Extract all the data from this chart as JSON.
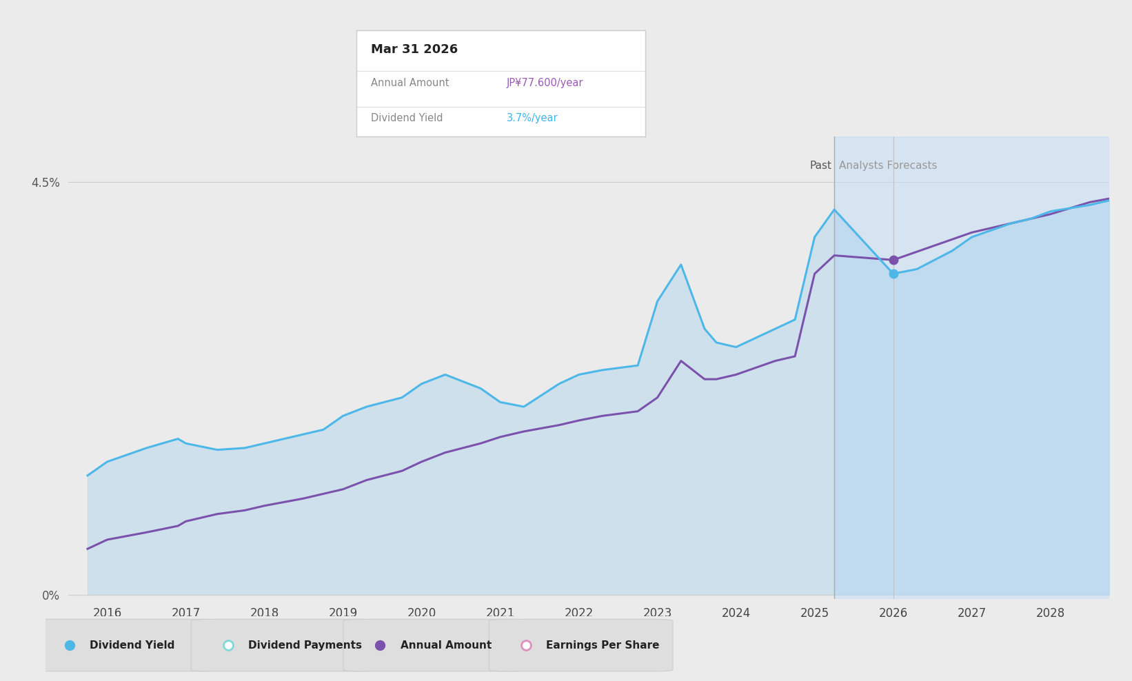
{
  "bg_color": "#ebebeb",
  "plot_bg_color": "#ebebeb",
  "x_min": 2015.5,
  "x_max": 2028.75,
  "y_min": -0.05,
  "y_max": 5.0,
  "blue_line": {
    "x": [
      2015.75,
      2016.0,
      2016.5,
      2016.9,
      2017.0,
      2017.4,
      2017.75,
      2018.0,
      2018.5,
      2018.75,
      2019.0,
      2019.3,
      2019.75,
      2020.0,
      2020.3,
      2020.75,
      2021.0,
      2021.3,
      2021.75,
      2022.0,
      2022.3,
      2022.75,
      2023.0,
      2023.3,
      2023.6,
      2023.75,
      2024.0,
      2024.5,
      2024.75,
      2025.0,
      2025.25,
      2026.0,
      2026.3,
      2026.75,
      2027.0,
      2027.5,
      2027.75,
      2028.0,
      2028.5,
      2028.75
    ],
    "y": [
      1.3,
      1.45,
      1.6,
      1.7,
      1.65,
      1.58,
      1.6,
      1.65,
      1.75,
      1.8,
      1.95,
      2.05,
      2.15,
      2.3,
      2.4,
      2.25,
      2.1,
      2.05,
      2.3,
      2.4,
      2.45,
      2.5,
      3.2,
      3.6,
      2.9,
      2.75,
      2.7,
      2.9,
      3.0,
      3.9,
      4.2,
      3.5,
      3.55,
      3.75,
      3.9,
      4.05,
      4.1,
      4.18,
      4.25,
      4.3
    ],
    "color": "#4db8e8",
    "lw": 2.2
  },
  "purple_line": {
    "x": [
      2015.75,
      2016.0,
      2016.5,
      2016.9,
      2017.0,
      2017.4,
      2017.75,
      2018.0,
      2018.5,
      2018.75,
      2019.0,
      2019.3,
      2019.75,
      2020.0,
      2020.3,
      2020.75,
      2021.0,
      2021.3,
      2021.75,
      2022.0,
      2022.3,
      2022.75,
      2023.0,
      2023.3,
      2023.6,
      2023.75,
      2024.0,
      2024.5,
      2024.75,
      2025.0,
      2025.25,
      2026.0,
      2026.5,
      2027.0,
      2027.5,
      2028.0,
      2028.5,
      2028.75
    ],
    "y": [
      0.5,
      0.6,
      0.68,
      0.75,
      0.8,
      0.88,
      0.92,
      0.97,
      1.05,
      1.1,
      1.15,
      1.25,
      1.35,
      1.45,
      1.55,
      1.65,
      1.72,
      1.78,
      1.85,
      1.9,
      1.95,
      2.0,
      2.15,
      2.55,
      2.35,
      2.35,
      2.4,
      2.55,
      2.6,
      3.5,
      3.7,
      3.65,
      3.8,
      3.95,
      4.05,
      4.15,
      4.28,
      4.32
    ],
    "color": "#7b52ab",
    "lw": 2.2
  },
  "fill_color": "#b8d8f0",
  "fill_alpha": 0.55,
  "forecast_start": 2025.25,
  "forecast_fill_color": "#c8dff5",
  "forecast_fill_alpha": 0.6,
  "past_line_x": 2025.25,
  "highlight_x": 2026.0,
  "blue_dot_y": 3.5,
  "purple_dot_y": 3.65,
  "past_label": "Past",
  "forecast_label": "Analysts Forecasts",
  "tooltip": {
    "title": "Mar 31 2026",
    "row1_label": "Annual Amount",
    "row1_value": "JP¥77.600/year",
    "row1_value_color": "#9b59b6",
    "row2_label": "Dividend Yield",
    "row2_value": "3.7%/year",
    "row2_value_color": "#3eb6e8"
  },
  "legend_items": [
    {
      "label": "Dividend Yield",
      "color": "#4db8e8",
      "filled": true
    },
    {
      "label": "Dividend Payments",
      "color": "#80d8d8",
      "filled": false
    },
    {
      "label": "Annual Amount",
      "color": "#7b52ab",
      "filled": true
    },
    {
      "label": "Earnings Per Share",
      "color": "#e090c0",
      "filled": false
    }
  ]
}
